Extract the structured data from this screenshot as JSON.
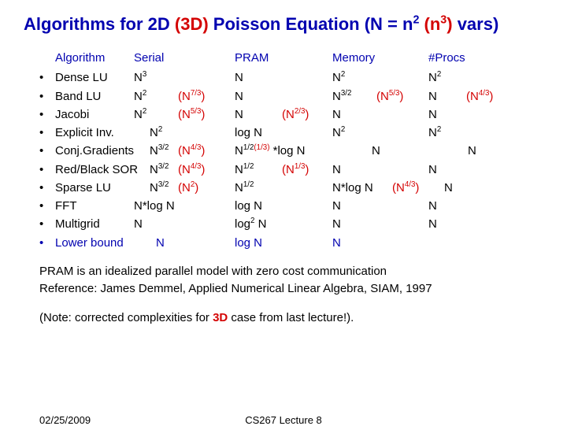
{
  "title": {
    "prefix": "Algorithms for 2D ",
    "threeD": "(3D)",
    "mid": " Poisson Equation (N = n",
    "sup2": "2",
    "paren_open": " (",
    "n3_n": "n",
    "n3_sup": "3",
    "paren_close": ")",
    "suffix": " vars)"
  },
  "headers": {
    "algorithm": "Algorithm",
    "serial": "Serial",
    "pram": "PRAM",
    "memory": "Memory",
    "procs": "#Procs"
  },
  "bullet": "•",
  "rows": [
    {
      "alg": "Dense LU",
      "s": "N",
      "ssup": "3",
      "s3": "",
      "p": "N",
      "psup": "",
      "p3": "",
      "m": "N",
      "msup": "2",
      "m3": "",
      "pr": "N",
      "prsup": "2",
      "pr3": ""
    },
    {
      "alg": "Band LU",
      "s": "N",
      "ssup": "2",
      "s3": "(N",
      "s3sup": "7/3",
      "s3end": ")",
      "p": "N",
      "psup": "",
      "p3": "",
      "m": "N",
      "msup": "3/2",
      "m3": "(N",
      "m3sup": "5/3",
      "m3end": ")",
      "pr": "N",
      "prsup": "",
      "pr3": "(N",
      "pr3sup": "4/3",
      "pr3end": ")"
    },
    {
      "alg": "Jacobi",
      "s": "N",
      "ssup": "2",
      "s3": "(N",
      "s3sup": "5/3",
      "s3end": ")",
      "p": "N",
      "psup": "",
      "p3": "(N",
      "p3sup": "2/3",
      "p3end": ")",
      "m": "N",
      "msup": "",
      "m3": "",
      "pr": "N",
      "prsup": "",
      "pr3": ""
    },
    {
      "alg": "Explicit Inv.",
      "s": "N",
      "ssup": "2",
      "s3": "",
      "p": "log N",
      "psup": "",
      "p3": "",
      "m": "N",
      "msup": "2",
      "m3": "",
      "pr": "N",
      "prsup": "2",
      "pr3": ""
    },
    {
      "alg": "Conj.Gradients",
      "s": "N",
      "ssup": "3/2",
      "s3": "(N",
      "s3sup": "4/3",
      "s3end": ")",
      "p": "N",
      "psup": "1/2",
      "p3_in": "(1/3)",
      "pextra": " *log N",
      "m": "N",
      "msup": "",
      "m3": "",
      "pr": "N",
      "prsup": "",
      "pr3": ""
    },
    {
      "alg": "Red/Black SOR",
      "s": "N",
      "ssup": "3/2",
      "s3": "(N",
      "s3sup": "4/3",
      "s3end": ")",
      "p": "N",
      "psup": "1/2",
      "p3": "(N",
      "p3sup": "1/3",
      "p3end": ")",
      "m": "N",
      "msup": "",
      "m3": "",
      "pr": "N",
      "prsup": "",
      "pr3": ""
    },
    {
      "alg": "Sparse LU",
      "s": "N",
      "ssup": "3/2",
      "s3": "(N",
      "s3sup": "2",
      "s3end": ")",
      "p": "N",
      "psup": "1/2",
      "p3": "",
      "m": "N*log N",
      "msup": "",
      "m3": "(N",
      "m3sup": "4/3",
      "m3end": ")",
      "pr": "N",
      "prsup": "",
      "pr3": ""
    },
    {
      "alg": "FFT",
      "s": "N*log N",
      "ssup": "",
      "s3": "",
      "p": "log N",
      "psup": "",
      "p3": "",
      "m": "N",
      "msup": "",
      "m3": "",
      "pr": "N",
      "prsup": "",
      "pr3": ""
    },
    {
      "alg": "Multigrid",
      "s": "N",
      "ssup": "",
      "s3": "",
      "p": "log",
      "psup": "2",
      "pextra": " N",
      "p3": "",
      "m": "N",
      "msup": "",
      "m3": "",
      "pr": "N",
      "prsup": "",
      "pr3": ""
    }
  ],
  "lower": {
    "alg": "Lower bound",
    "s": "N",
    "p": "log N",
    "m": "N"
  },
  "notes": {
    "pram": "PRAM is an idealized parallel model with zero cost communication",
    "ref": "Reference:  James Demmel, Applied Numerical Linear Algebra, SIAM, 1997",
    "note_a": "(Note: corrected complexities for ",
    "note_3d": "3D",
    "note_b": " case from last lecture!)."
  },
  "footer": {
    "date": "02/25/2009",
    "course": "CS267 Lecture 8"
  }
}
